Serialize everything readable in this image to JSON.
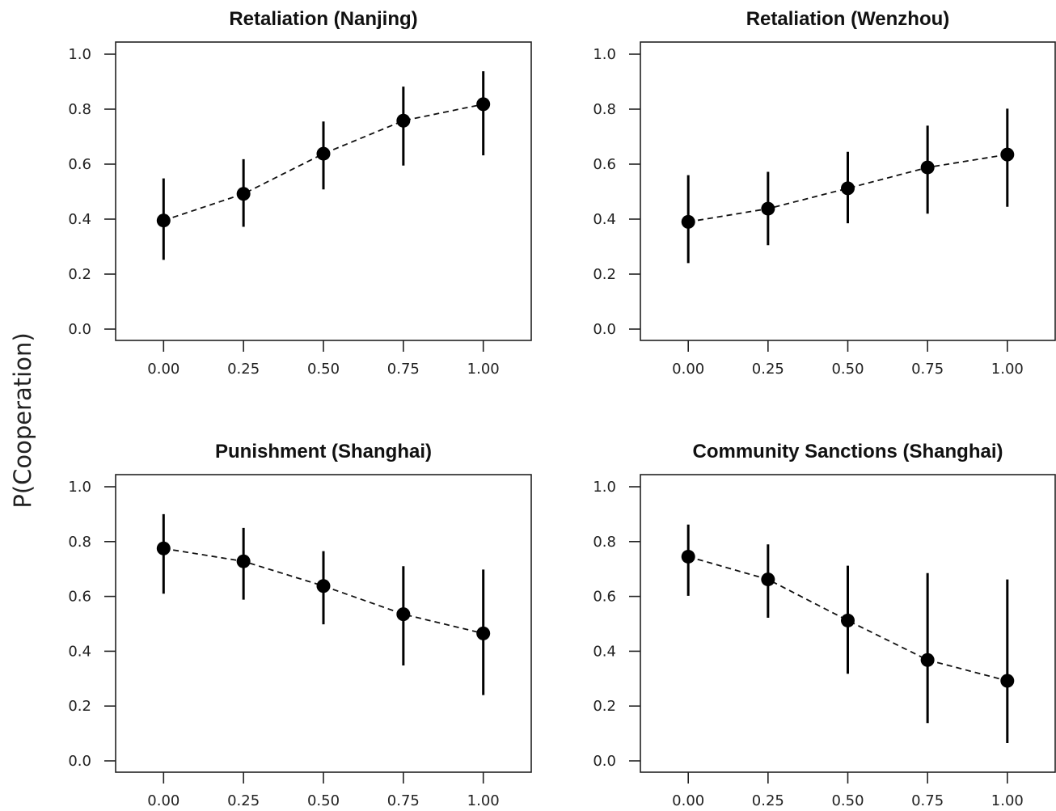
{
  "ylabel": "P(Cooperation)",
  "chart_data": [
    {
      "type": "scatter",
      "title": "Retaliation (Nanjing)",
      "xlabel": "",
      "ylabel": "P(Cooperation)",
      "x": [
        0.0,
        0.25,
        0.5,
        0.75,
        1.0
      ],
      "x_tick_labels": [
        "0.00",
        "0.25",
        "0.50",
        "0.75",
        "1.00"
      ],
      "y_ticks": [
        0.0,
        0.2,
        0.4,
        0.6,
        0.8,
        1.0
      ],
      "y_tick_labels": [
        "0.0",
        "0.2",
        "0.4",
        "0.6",
        "0.8",
        "1.0"
      ],
      "ylim": [
        0,
        1
      ],
      "xlim": [
        -0.15,
        1.15
      ],
      "series": [
        {
          "y": [
            0.395,
            0.492,
            0.638,
            0.758,
            0.818
          ],
          "lower": [
            0.252,
            0.372,
            0.508,
            0.595,
            0.632
          ],
          "upper": [
            0.548,
            0.618,
            0.755,
            0.882,
            0.938
          ]
        }
      ],
      "line_style": "dashed",
      "grid": false,
      "legend": "none"
    },
    {
      "type": "scatter",
      "title": "Retaliation (Wenzhou)",
      "xlabel": "",
      "ylabel": "P(Cooperation)",
      "x": [
        0.0,
        0.25,
        0.5,
        0.75,
        1.0
      ],
      "x_tick_labels": [
        "0.00",
        "0.25",
        "0.50",
        "0.75",
        "1.00"
      ],
      "y_ticks": [
        0.0,
        0.2,
        0.4,
        0.6,
        0.8,
        1.0
      ],
      "y_tick_labels": [
        "0.0",
        "0.2",
        "0.4",
        "0.6",
        "0.8",
        "1.0"
      ],
      "ylim": [
        0,
        1
      ],
      "xlim": [
        -0.15,
        1.15
      ],
      "series": [
        {
          "y": [
            0.39,
            0.438,
            0.512,
            0.588,
            0.635
          ],
          "lower": [
            0.24,
            0.305,
            0.385,
            0.42,
            0.445
          ],
          "upper": [
            0.56,
            0.572,
            0.645,
            0.74,
            0.802
          ]
        }
      ],
      "line_style": "dashed",
      "grid": false,
      "legend": "none"
    },
    {
      "type": "scatter",
      "title": "Punishment (Shanghai)",
      "xlabel": "",
      "ylabel": "P(Cooperation)",
      "x": [
        0.0,
        0.25,
        0.5,
        0.75,
        1.0
      ],
      "x_tick_labels": [
        "0.00",
        "0.25",
        "0.50",
        "0.75",
        "1.00"
      ],
      "y_ticks": [
        0.0,
        0.2,
        0.4,
        0.6,
        0.8,
        1.0
      ],
      "y_tick_labels": [
        "0.0",
        "0.2",
        "0.4",
        "0.6",
        "0.8",
        "1.0"
      ],
      "ylim": [
        0,
        1
      ],
      "xlim": [
        -0.15,
        1.15
      ],
      "series": [
        {
          "y": [
            0.775,
            0.728,
            0.638,
            0.535,
            0.465
          ],
          "lower": [
            0.61,
            0.588,
            0.498,
            0.348,
            0.24
          ],
          "upper": [
            0.9,
            0.85,
            0.765,
            0.71,
            0.698
          ]
        }
      ],
      "line_style": "dashed",
      "grid": false,
      "legend": "none"
    },
    {
      "type": "scatter",
      "title": "Community Sanctions (Shanghai)",
      "xlabel": "",
      "ylabel": "P(Cooperation)",
      "x": [
        0.0,
        0.25,
        0.5,
        0.75,
        1.0
      ],
      "x_tick_labels": [
        "0.00",
        "0.25",
        "0.50",
        "0.75",
        "1.00"
      ],
      "y_ticks": [
        0.0,
        0.2,
        0.4,
        0.6,
        0.8,
        1.0
      ],
      "y_tick_labels": [
        "0.0",
        "0.2",
        "0.4",
        "0.6",
        "0.8",
        "1.0"
      ],
      "ylim": [
        0,
        1
      ],
      "xlim": [
        -0.15,
        1.15
      ],
      "series": [
        {
          "y": [
            0.745,
            0.662,
            0.512,
            0.368,
            0.292
          ],
          "lower": [
            0.602,
            0.522,
            0.318,
            0.138,
            0.065
          ],
          "upper": [
            0.862,
            0.79,
            0.712,
            0.685,
            0.662
          ]
        }
      ],
      "line_style": "dashed",
      "grid": false,
      "legend": "none"
    }
  ]
}
